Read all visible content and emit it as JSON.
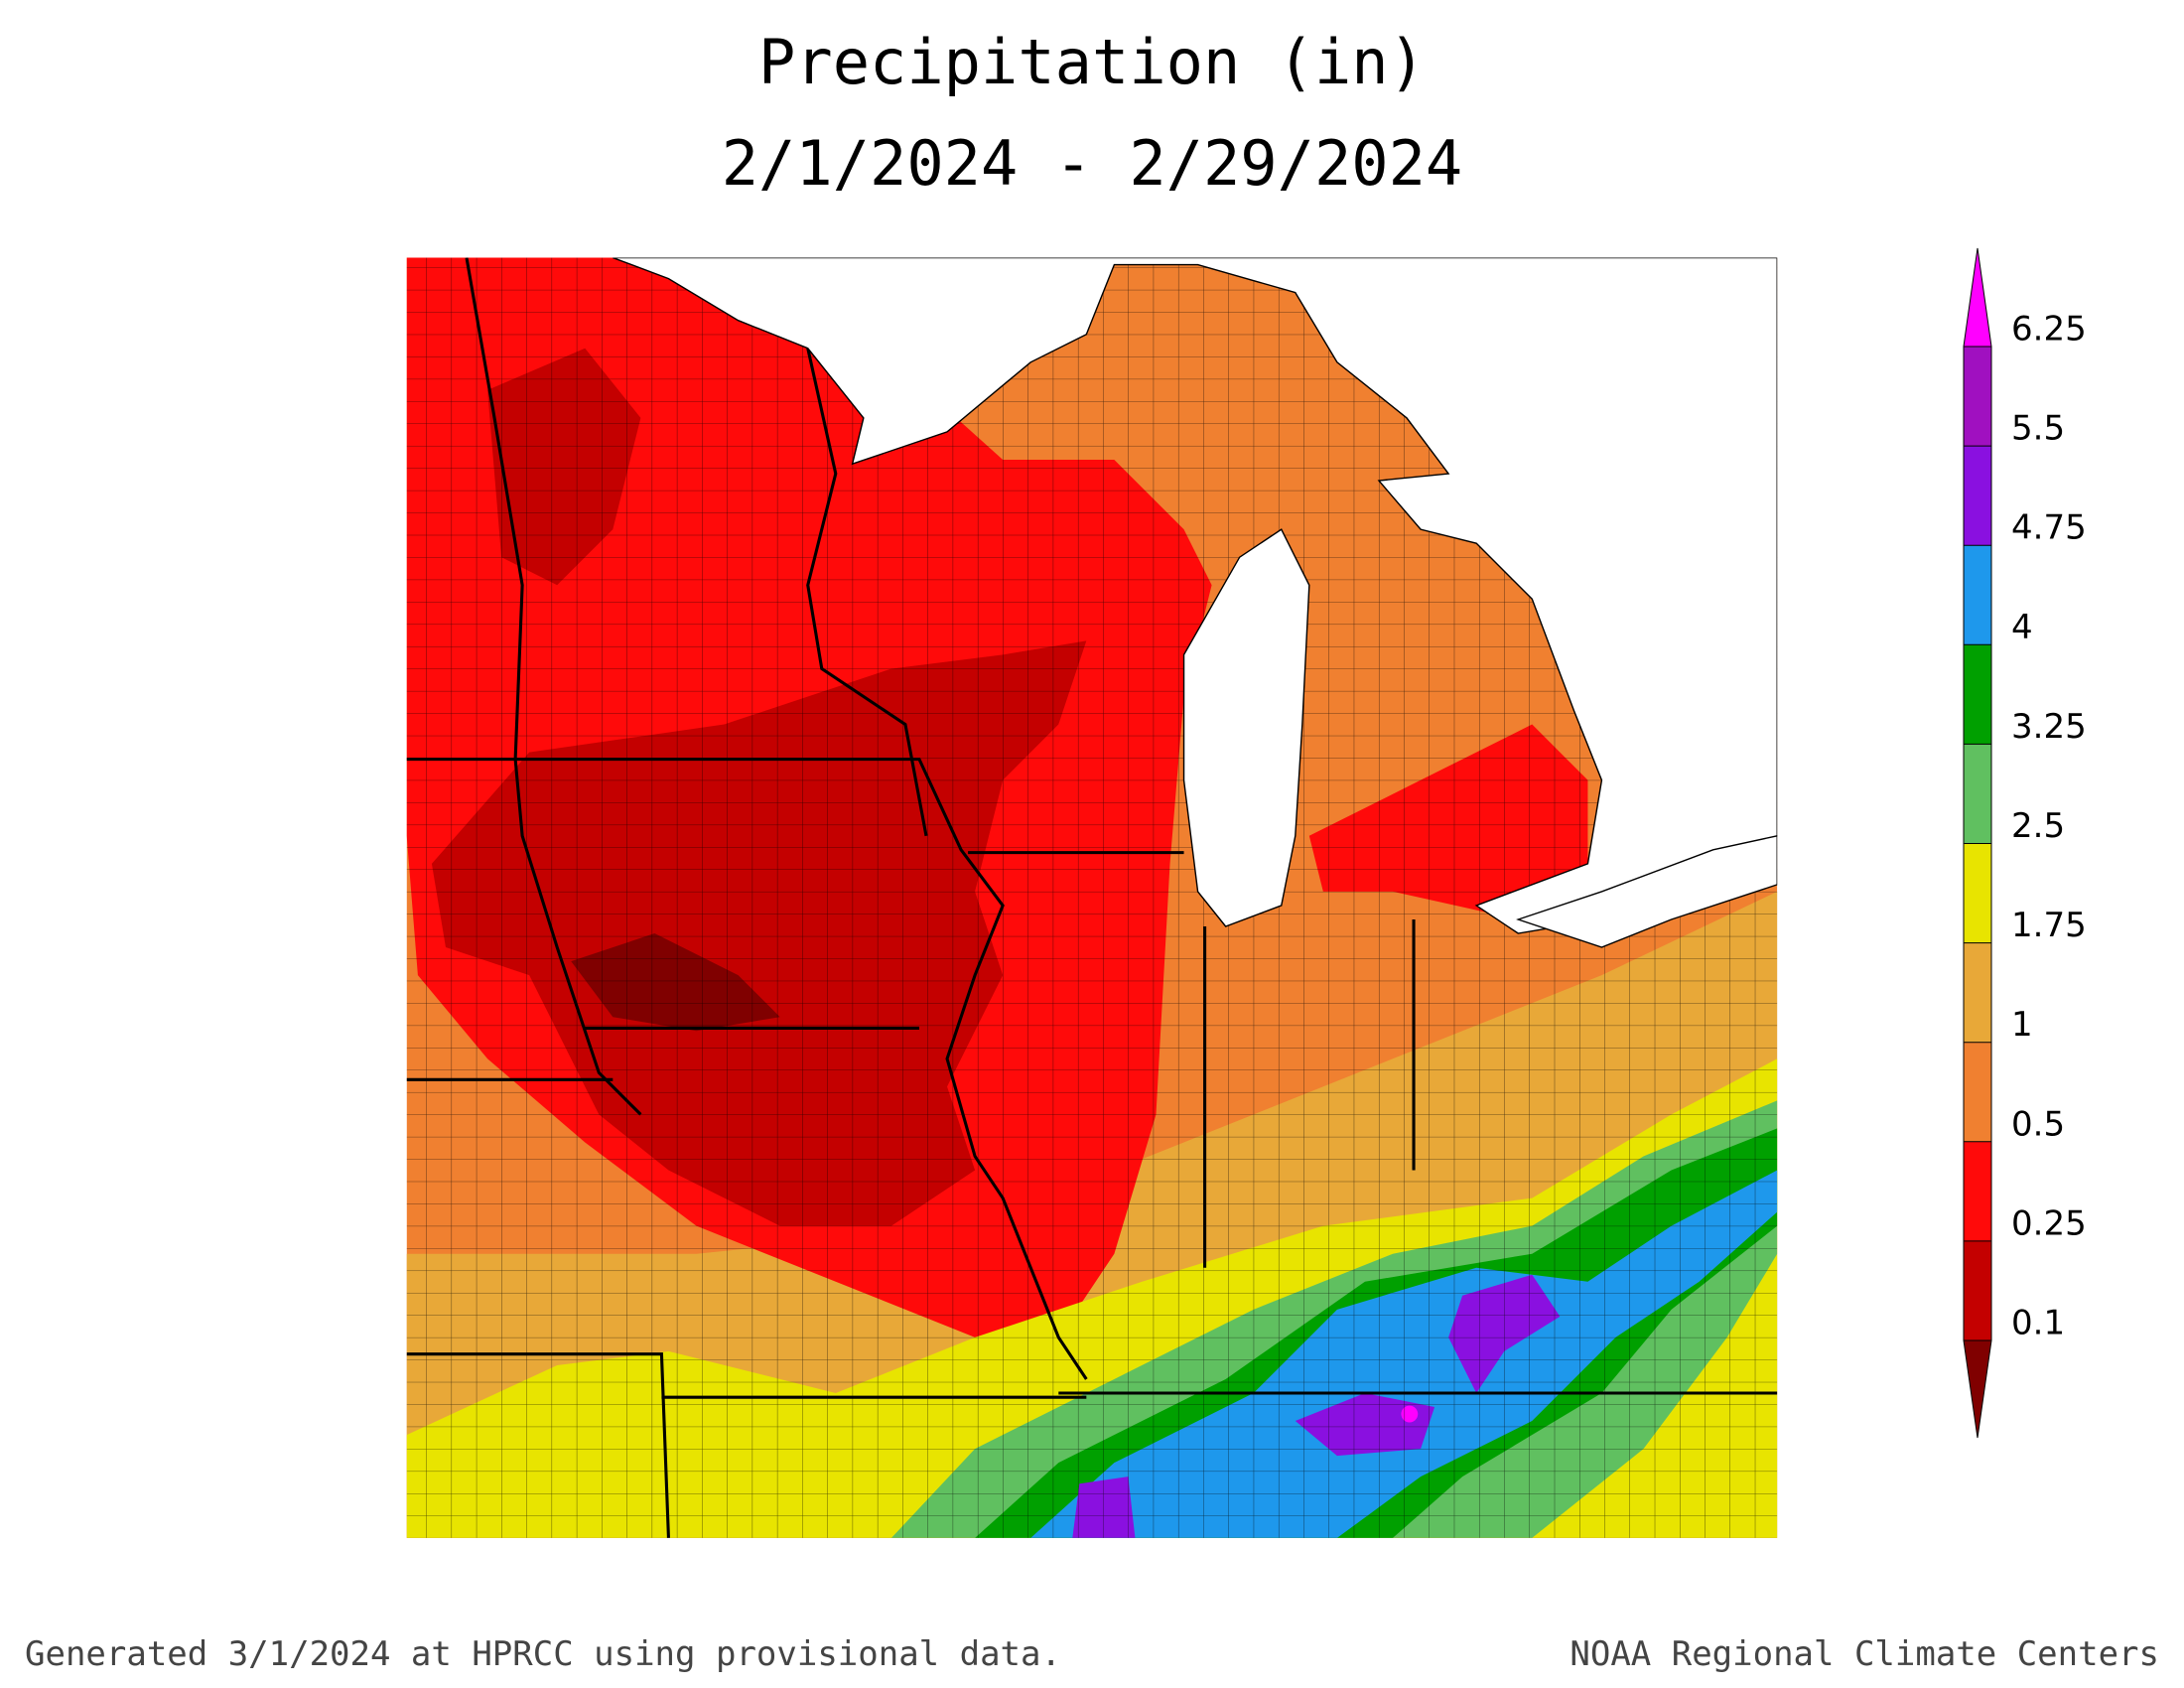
{
  "title": {
    "line1": "Precipitation (in)",
    "line2": "2/1/2024 - 2/29/2024"
  },
  "legend": {
    "levels": [
      0.1,
      0.25,
      0.5,
      1,
      1.75,
      2.5,
      3.25,
      4,
      4.75,
      5.5,
      6.25
    ],
    "colors": [
      "#800000",
      "#c40000",
      "#ff0a0a",
      "#f08030",
      "#e8a838",
      "#e8e400",
      "#60c060",
      "#00a000",
      "#1e98ec",
      "#8a10e0",
      "#a010c0",
      "#ff00ff"
    ]
  },
  "footer": {
    "left": "Generated 3/1/2024 at HPRCC using provisional data.",
    "right": "NOAA Regional Climate Centers"
  }
}
